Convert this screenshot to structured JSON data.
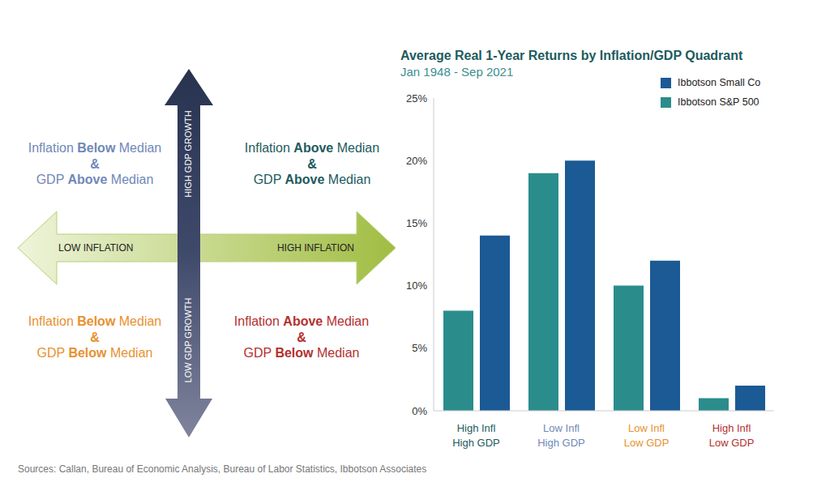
{
  "chart_data": {
    "type": "bar",
    "title": "Average Real 1-Year Returns by Inflation/GDP Quadrant",
    "subtitle": "Jan 1948 - Sep 2021",
    "categories": [
      "High Infl\nHigh GDP",
      "Low Infl\nHigh GDP",
      "Low Infl\nLow GDP",
      "High Infl\nLow GDP"
    ],
    "series": [
      {
        "name": "Ibbotson S&P 500",
        "color": "#2b8c8c",
        "values": [
          8,
          19,
          10,
          1
        ]
      },
      {
        "name": "Ibbotson Small Co",
        "color": "#1b5a94",
        "values": [
          14,
          20,
          12,
          2
        ]
      }
    ],
    "ylim": [
      0,
      25
    ],
    "yticks": [
      {
        "value": 0,
        "label": "0%"
      },
      {
        "value": 5,
        "label": "5%"
      },
      {
        "value": 10,
        "label": "10%"
      },
      {
        "value": 15,
        "label": "15%"
      },
      {
        "value": 20,
        "label": "20%"
      },
      {
        "value": 25,
        "label": "25%"
      }
    ],
    "grid": false,
    "legend": "top-right"
  },
  "diagram": {
    "arrows": {
      "up": "HIGH GDP GROWTH",
      "down": "LOW GDP GROWTH",
      "left": "LOW INFLATION",
      "right": "HIGH INFLATION"
    },
    "quadrants": [
      {
        "lines": [
          [
            {
              "text": "Inflation "
            },
            {
              "text": "Below",
              "bold": true
            },
            {
              "text": " Median"
            }
          ],
          [
            {
              "text": "&",
              "bold": true
            }
          ],
          [
            {
              "text": "GDP "
            },
            {
              "text": "Above",
              "bold": true
            },
            {
              "text": " Median"
            }
          ]
        ]
      },
      {
        "lines": [
          [
            {
              "text": "Inflation "
            },
            {
              "text": "Above",
              "bold": true
            },
            {
              "text": " Median"
            }
          ],
          [
            {
              "text": "&",
              "bold": true
            }
          ],
          [
            {
              "text": "GDP "
            },
            {
              "text": "Above",
              "bold": true
            },
            {
              "text": " Median"
            }
          ]
        ]
      },
      {
        "lines": [
          [
            {
              "text": "Inflation "
            },
            {
              "text": "Below",
              "bold": true
            },
            {
              "text": " Median"
            }
          ],
          [
            {
              "text": "&",
              "bold": true
            }
          ],
          [
            {
              "text": "GDP "
            },
            {
              "text": "Below",
              "bold": true
            },
            {
              "text": " Median"
            }
          ]
        ]
      },
      {
        "lines": [
          [
            {
              "text": "Inflation "
            },
            {
              "text": "Above",
              "bold": true
            },
            {
              "text": " Median"
            }
          ],
          [
            {
              "text": "&",
              "bold": true
            }
          ],
          [
            {
              "text": "GDP "
            },
            {
              "text": "Below",
              "bold": true
            },
            {
              "text": " Median"
            }
          ]
        ]
      }
    ]
  },
  "source": "Sources: Callan, Bureau of Economic Analysis, Bureau of Labor Statistics, Ibbotson Associates"
}
